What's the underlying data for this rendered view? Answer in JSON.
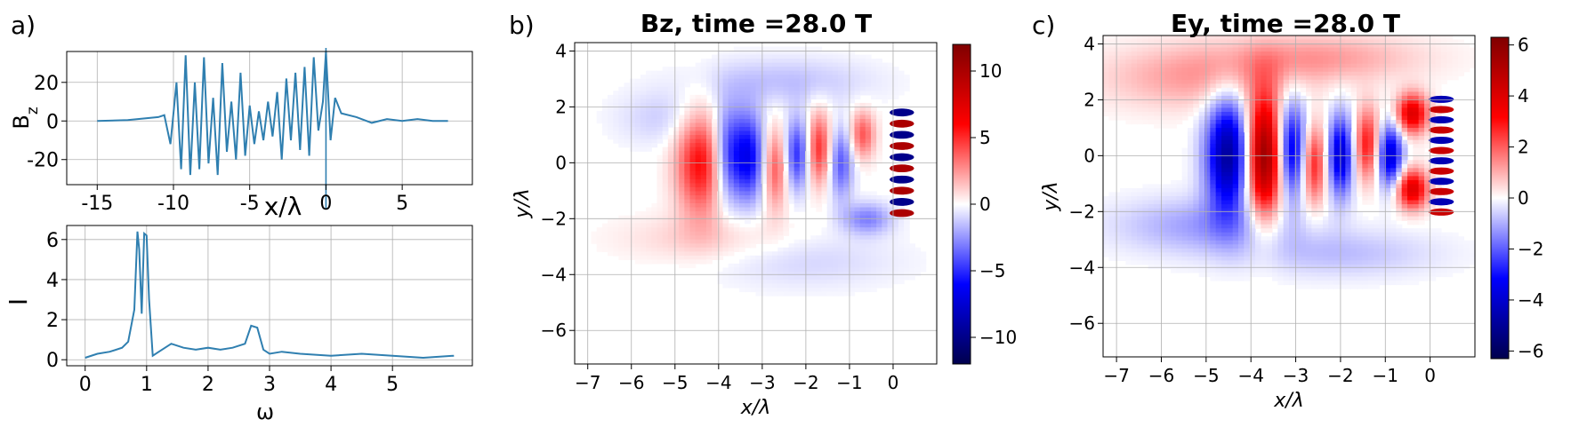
{
  "chart_data": [
    {
      "panel_letter": "a)",
      "type": "line",
      "xlabel": "x/λ",
      "ylabel": "B_z",
      "xlim": [
        -17,
        9.6
      ],
      "ylim": [
        -33,
        36
      ],
      "xticks": [
        -15,
        -10,
        -5,
        0,
        5
      ],
      "xtick_labels": [
        "-15",
        "-10",
        "-5",
        "0",
        "5"
      ],
      "yticks": [
        -20,
        0,
        20
      ],
      "ytick_labels": [
        "-20",
        "0",
        "20"
      ],
      "grid": true,
      "color": "#2f7fb0",
      "vertical_line_x": 0,
      "series": [
        {
          "x": [
            -15,
            -13,
            -11,
            -10.6,
            -10.2,
            -9.8,
            -9.5,
            -9.2,
            -8.9,
            -8.6,
            -8.3,
            -8.0,
            -7.7,
            -7.4,
            -7.1,
            -6.8,
            -6.5,
            -6.2,
            -5.9,
            -5.6,
            -5.3,
            -5.0,
            -4.7,
            -4.4,
            -4.1,
            -3.8,
            -3.5,
            -3.2,
            -2.9,
            -2.6,
            -2.3,
            -2.0,
            -1.7,
            -1.4,
            -1.1,
            -0.8,
            -0.5,
            -0.2,
            0.0,
            0.3,
            0.6,
            1.0,
            2,
            3,
            4,
            5,
            6,
            7,
            8
          ],
          "y": [
            0,
            0.5,
            2,
            3,
            -12,
            20,
            -25,
            34,
            -28,
            20,
            -25,
            33,
            -22,
            12,
            -28,
            30,
            -16,
            10,
            -20,
            25,
            -18,
            8,
            -12,
            5,
            -10,
            10,
            -8,
            15,
            -20,
            22,
            -10,
            25,
            -15,
            28,
            -18,
            33,
            -5,
            10,
            36,
            -10,
            12,
            4,
            2,
            -1,
            1,
            0,
            1,
            0,
            0
          ]
        }
      ]
    },
    {
      "panel_letter": "",
      "type": "line",
      "xlabel": "ω",
      "ylabel": "I",
      "xlim": [
        -0.3,
        6.3
      ],
      "ylim": [
        -0.3,
        6.7
      ],
      "xticks": [
        0,
        1,
        2,
        3,
        4,
        5
      ],
      "xtick_labels": [
        "0",
        "1",
        "2",
        "3",
        "4",
        "5"
      ],
      "yticks": [
        0,
        2,
        4,
        6
      ],
      "ytick_labels": [
        "0",
        "2",
        "4",
        "6"
      ],
      "grid": true,
      "color": "#2f7fb0",
      "series": [
        {
          "x": [
            0,
            0.2,
            0.4,
            0.6,
            0.7,
            0.8,
            0.85,
            0.88,
            0.92,
            0.96,
            1.0,
            1.04,
            1.1,
            1.2,
            1.4,
            1.6,
            1.8,
            2.0,
            2.2,
            2.4,
            2.6,
            2.7,
            2.8,
            2.9,
            3.0,
            3.2,
            3.5,
            4.0,
            4.5,
            5.0,
            5.5,
            6.0
          ],
          "y": [
            0.1,
            0.3,
            0.4,
            0.6,
            0.9,
            2.5,
            6.4,
            5.5,
            2.3,
            6.3,
            6.2,
            3.0,
            0.2,
            0.4,
            0.8,
            0.6,
            0.5,
            0.6,
            0.5,
            0.6,
            0.8,
            1.7,
            1.6,
            0.5,
            0.3,
            0.4,
            0.3,
            0.2,
            0.3,
            0.2,
            0.1,
            0.2
          ]
        }
      ]
    },
    {
      "panel_letter": "b)",
      "type": "heatmap",
      "title": "Bz, time =28.0 T",
      "xlabel": "x/λ",
      "ylabel": "y/λ",
      "xlim": [
        -7.3,
        1.0
      ],
      "ylim": [
        -7.2,
        4.3
      ],
      "xticks": [
        -7,
        -6,
        -5,
        -4,
        -3,
        -2,
        -1,
        0
      ],
      "xtick_labels": [
        "−7",
        "−6",
        "−5",
        "−4",
        "−3",
        "−2",
        "−1",
        "0"
      ],
      "yticks": [
        -6,
        -4,
        -2,
        0,
        2,
        4
      ],
      "ytick_labels": [
        "−6",
        "−4",
        "−2",
        "0",
        "2",
        "4"
      ],
      "grid": true,
      "colormap": "seismic",
      "colorbar": {
        "vmin": -12,
        "vmax": 12,
        "ticks": [
          -10,
          -5,
          0,
          5,
          10
        ],
        "tick_labels": [
          "−10",
          "−5",
          "0",
          "5",
          "10"
        ]
      },
      "blobs": [
        {
          "x": -4.4,
          "y": 0.0,
          "amp": 6,
          "sx": 0.4,
          "sy": 1.3
        },
        {
          "x": -3.8,
          "y": 0.3,
          "amp": -5,
          "sx": 0.25,
          "sy": 1.2
        },
        {
          "x": -3.3,
          "y": 0.2,
          "amp": -6,
          "sx": 0.25,
          "sy": 1.1
        },
        {
          "x": -2.7,
          "y": -0.2,
          "amp": 4,
          "sx": 0.2,
          "sy": 1.0
        },
        {
          "x": -2.2,
          "y": 0.3,
          "amp": -5,
          "sx": 0.2,
          "sy": 0.9
        },
        {
          "x": -1.7,
          "y": 0.5,
          "amp": 5,
          "sx": 0.2,
          "sy": 0.9
        },
        {
          "x": -1.2,
          "y": 0.0,
          "amp": -4,
          "sx": 0.2,
          "sy": 0.9
        },
        {
          "x": -0.7,
          "y": 1.0,
          "amp": 4,
          "sx": 0.2,
          "sy": 0.6
        },
        {
          "x": -0.6,
          "y": -2.0,
          "amp": -3,
          "sx": 0.4,
          "sy": 0.4
        },
        {
          "x": -5.2,
          "y": 1.6,
          "amp": -1.2,
          "sx": 0.8,
          "sy": 0.7
        },
        {
          "x": -2.5,
          "y": 2.9,
          "amp": -1.5,
          "sx": 1.4,
          "sy": 0.6
        },
        {
          "x": -4.2,
          "y": -2.7,
          "amp": 1.2,
          "sx": 1.4,
          "sy": 0.6
        },
        {
          "x": -2.0,
          "y": -3.5,
          "amp": -1.0,
          "sx": 1.5,
          "sy": 0.7
        }
      ],
      "edge_stripes": {
        "x": 0.2,
        "y_from": -2.0,
        "y_to": 2.0,
        "count": 10,
        "amp": 11
      }
    },
    {
      "panel_letter": "c)",
      "type": "heatmap",
      "title": "Ey, time =28.0 T",
      "xlabel": "x/λ",
      "ylabel": "y/λ",
      "xlim": [
        -7.3,
        1.0
      ],
      "ylim": [
        -7.2,
        4.3
      ],
      "xticks": [
        -7,
        -6,
        -5,
        -4,
        -3,
        -2,
        -1,
        0
      ],
      "xtick_labels": [
        "−7",
        "−6",
        "−5",
        "−4",
        "−3",
        "−2",
        "−1",
        "0"
      ],
      "yticks": [
        -6,
        -4,
        -2,
        0,
        2,
        4
      ],
      "ytick_labels": [
        "−6",
        "−4",
        "−2",
        "0",
        "2",
        "4"
      ],
      "grid": true,
      "colormap": "seismic",
      "colorbar": {
        "vmin": -6.3,
        "vmax": 6.3,
        "ticks": [
          -6,
          -4,
          -2,
          0,
          2,
          4,
          6
        ],
        "tick_labels": [
          "−6",
          "−4",
          "−2",
          "0",
          "2",
          "4",
          "6"
        ]
      },
      "blobs": [
        {
          "x": -4.5,
          "y": 0.0,
          "amp": -5,
          "sx": 0.35,
          "sy": 1.4
        },
        {
          "x": -3.7,
          "y": 0.0,
          "amp": 6,
          "sx": 0.3,
          "sy": 1.5
        },
        {
          "x": -3.1,
          "y": 0.2,
          "amp": -4,
          "sx": 0.25,
          "sy": 1.2
        },
        {
          "x": -2.6,
          "y": -0.3,
          "amp": 3,
          "sx": 0.2,
          "sy": 1.0
        },
        {
          "x": -2.0,
          "y": 0.0,
          "amp": -4,
          "sx": 0.2,
          "sy": 1.0
        },
        {
          "x": -1.4,
          "y": 0.4,
          "amp": 3,
          "sx": 0.2,
          "sy": 0.9
        },
        {
          "x": -0.9,
          "y": 0.0,
          "amp": -4,
          "sx": 0.2,
          "sy": 0.8
        },
        {
          "x": -0.4,
          "y": 1.5,
          "amp": 4,
          "sx": 0.25,
          "sy": 0.5
        },
        {
          "x": -0.4,
          "y": -1.2,
          "amp": 4,
          "sx": 0.25,
          "sy": 0.5
        },
        {
          "x": -5.2,
          "y": 2.8,
          "amp": 1.2,
          "sx": 1.5,
          "sy": 0.8
        },
        {
          "x": -2.5,
          "y": 3.5,
          "amp": 1.2,
          "sx": 1.6,
          "sy": 0.6
        },
        {
          "x": -5.0,
          "y": -2.5,
          "amp": -1.2,
          "sx": 1.4,
          "sy": 0.7
        },
        {
          "x": -2.0,
          "y": -3.5,
          "amp": -0.8,
          "sx": 1.5,
          "sy": 0.6
        }
      ],
      "edge_stripes": {
        "x": 0.25,
        "y_from": -2.2,
        "y_to": 2.2,
        "count": 12,
        "amp": 5
      }
    }
  ]
}
